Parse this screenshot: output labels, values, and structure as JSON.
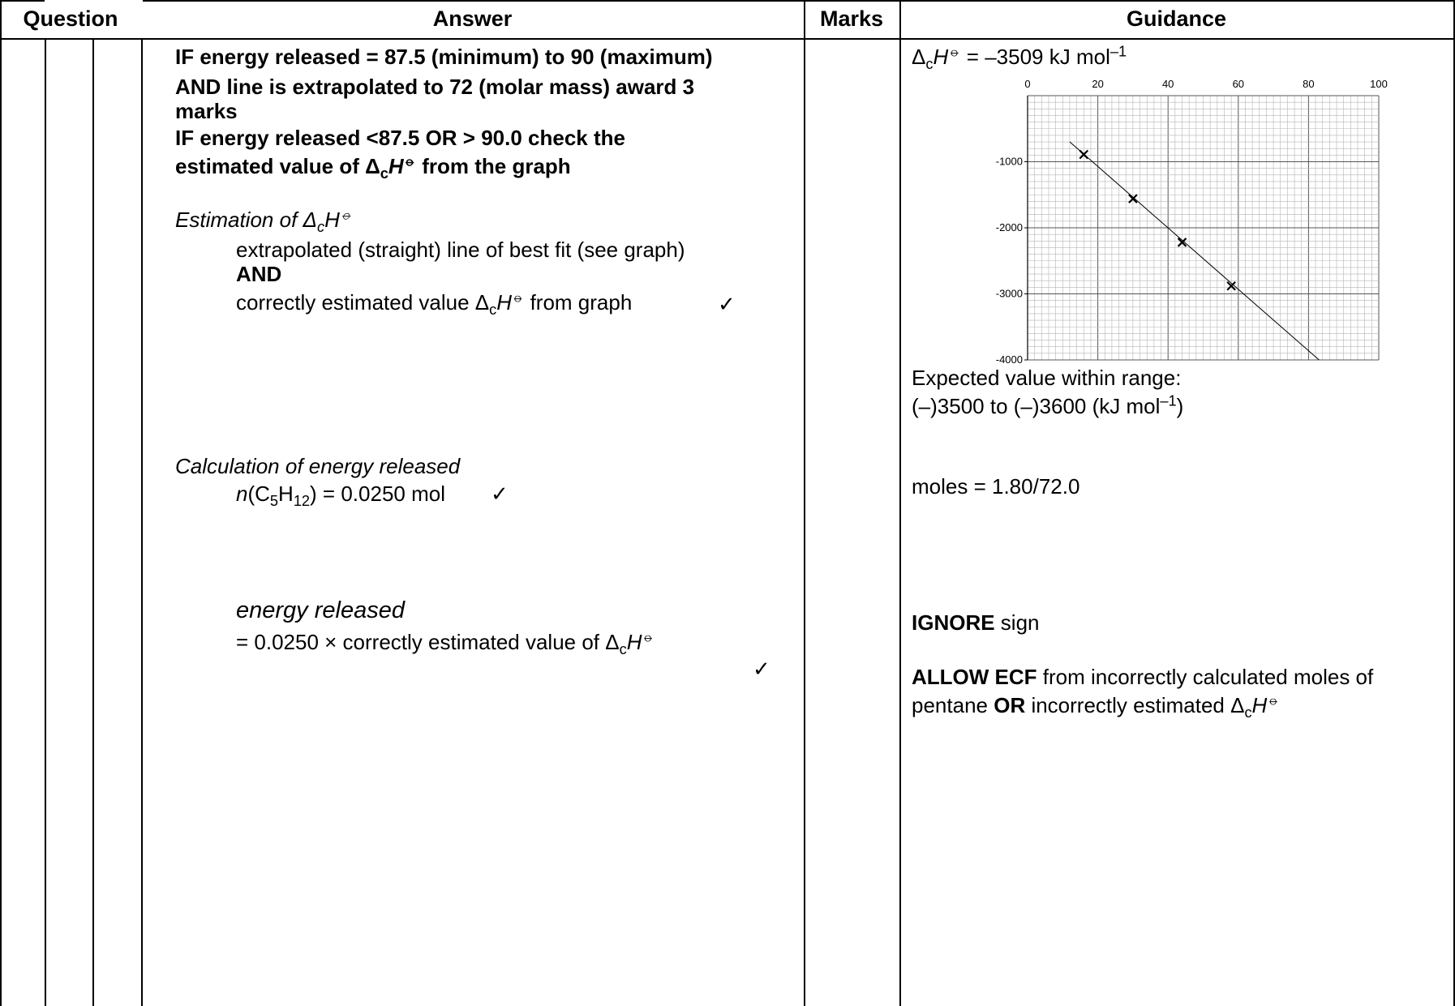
{
  "header": {
    "question": "Question",
    "answer": "Answer",
    "marks": "Marks",
    "guidance": "Guidance"
  },
  "answer": {
    "line1": "IF energy released = 87.5 (minimum) to 90 (maximum)",
    "line2": "AND line is extrapolated to 72 (molar mass) award 3",
    "line3": "marks",
    "line4": "IF energy released <87.5 OR  > 90.0 check the",
    "line5_prefix": "estimated value of Δ",
    "line5_sub": "c",
    "line5_sym": "H",
    "line5_std": "⦵",
    "line5_suffix": " from the graph",
    "est_heading_prefix": "Estimation of Δ",
    "est_heading_sub": "c",
    "est_heading_sym": "H",
    "est_heading_std": "⦵",
    "est_line1": "extrapolated (straight) line of best fit (see graph)",
    "est_and": "AND",
    "est_line2_prefix": "correctly estimated value Δ",
    "est_line2_sub": "c",
    "est_line2_sym": "H",
    "est_line2_std": "⦵",
    "est_line2_suffix": " from graph",
    "calc_heading": "Calculation of energy released",
    "calc_n_prefix": "n",
    "calc_n_open": "(C",
    "calc_n_sub1": "5",
    "calc_n_h": "H",
    "calc_n_sub2": "12",
    "calc_n_suffix": ") = 0.0250 mol",
    "energy_heading": "energy released",
    "energy_line_prefix": "= 0.0250 × correctly estimated value of Δ",
    "energy_line_sub": "c",
    "energy_line_sym": "H",
    "energy_line_std": "⦵",
    "tick": "✓"
  },
  "guidance": {
    "dh_prefix": "Δ",
    "dh_sub": "c",
    "dh_sym": "H",
    "dh_std": "⦵",
    "dh_value": " = –3509 kJ mol",
    "dh_sup": "–1",
    "expected_line1": "Expected value within range:",
    "expected_line2_prefix": " (–)3500 to (–)3600 (kJ mol",
    "expected_line2_sup": "–1",
    "expected_line2_suffix": ")",
    "moles": "moles = 1.80/72.0",
    "ignore_bold": "IGNORE",
    "ignore_rest": " sign",
    "allow_bold": "ALLOW ECF",
    "allow_rest": " from incorrectly calculated moles of",
    "allow2_prefix": "pentane ",
    "allow2_bold": "OR",
    "allow2_rest": " incorrectly estimated Δ",
    "allow2_sub": "c",
    "allow2_sym": "H",
    "allow2_std": "⦵"
  },
  "chart_data": {
    "type": "scatter",
    "xlim": [
      0,
      100
    ],
    "ylim": [
      -4000,
      0
    ],
    "x_ticks": [
      "0",
      "20",
      "40",
      "60",
      "80",
      "100"
    ],
    "y_ticks": [
      "-1000",
      "-2000",
      "-3000",
      "-4000"
    ],
    "tick_values_x": [
      0,
      20,
      40,
      60,
      80,
      100
    ],
    "tick_values_y": [
      -1000,
      -2000,
      -3000,
      -4000
    ],
    "points": [
      {
        "x": 16,
        "y": -890
      },
      {
        "x": 30,
        "y": -1560
      },
      {
        "x": 44,
        "y": -2220
      },
      {
        "x": 58,
        "y": -2880
      }
    ],
    "best_fit": {
      "x_start": 12,
      "y_start": -700,
      "x_end": 83,
      "y_end": -4000
    },
    "grid": true
  }
}
